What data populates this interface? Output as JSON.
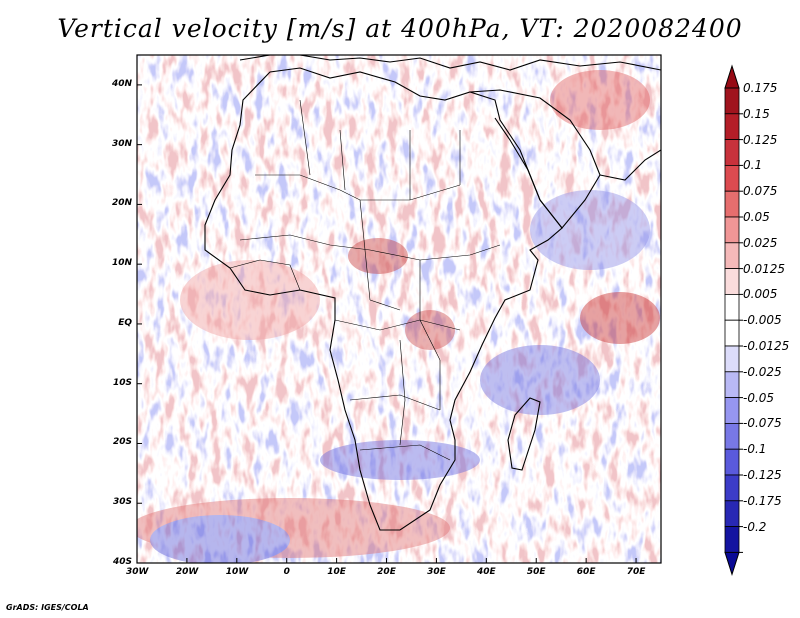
{
  "title": "Vertical velocity [m/s] at 400hPa, VT: 2020082400",
  "credit": "GrADS: IGES/COLA",
  "map": {
    "lon_range": [
      -30,
      75
    ],
    "lat_range": [
      -40,
      45
    ],
    "lat_ticks": [
      {
        "value": 40,
        "label": "40N"
      },
      {
        "value": 30,
        "label": "30N"
      },
      {
        "value": 20,
        "label": "20N"
      },
      {
        "value": 10,
        "label": "10N"
      },
      {
        "value": 0,
        "label": "EQ"
      },
      {
        "value": -10,
        "label": "10S"
      },
      {
        "value": -20,
        "label": "20S"
      },
      {
        "value": -30,
        "label": "30S"
      },
      {
        "value": -40,
        "label": "40S"
      }
    ],
    "lon_ticks": [
      {
        "value": -30,
        "label": "30W"
      },
      {
        "value": -20,
        "label": "20W"
      },
      {
        "value": -10,
        "label": "10W"
      },
      {
        "value": 0,
        "label": "0"
      },
      {
        "value": 10,
        "label": "10E"
      },
      {
        "value": 20,
        "label": "20E"
      },
      {
        "value": 30,
        "label": "30E"
      },
      {
        "value": 40,
        "label": "40E"
      },
      {
        "value": 50,
        "label": "50E"
      },
      {
        "value": 60,
        "label": "60E"
      },
      {
        "value": 70,
        "label": "70E"
      }
    ]
  },
  "colorbar": {
    "levels": [
      {
        "label": "0.175",
        "color": "#a0141e"
      },
      {
        "label": "0.15",
        "color": "#b41e28"
      },
      {
        "label": "0.125",
        "color": "#c8323c"
      },
      {
        "label": "0.1",
        "color": "#dc4b50"
      },
      {
        "label": "0.075",
        "color": "#e66e6e"
      },
      {
        "label": "0.05",
        "color": "#f09696"
      },
      {
        "label": "0.025",
        "color": "#f5b9b9"
      },
      {
        "label": "0.0125",
        "color": "#fadcdc"
      },
      {
        "label": "0.005",
        "color": "#ffffff"
      },
      {
        "label": "-0.005",
        "color": "#ffffff"
      },
      {
        "label": "-0.0125",
        "color": "#dcdcfa"
      },
      {
        "label": "-0.025",
        "color": "#b9b9f5"
      },
      {
        "label": "-0.05",
        "color": "#9696f0"
      },
      {
        "label": "-0.075",
        "color": "#7878e6"
      },
      {
        "label": "-0.1",
        "color": "#5a5adc"
      },
      {
        "label": "-0.125",
        "color": "#3c3cc8"
      },
      {
        "label": "-0.175",
        "color": "#2828b4"
      },
      {
        "label": "-0.2",
        "color": "#1414a0"
      }
    ],
    "top_cap_color": "#960a14",
    "bottom_cap_color": "#0a0a96"
  }
}
